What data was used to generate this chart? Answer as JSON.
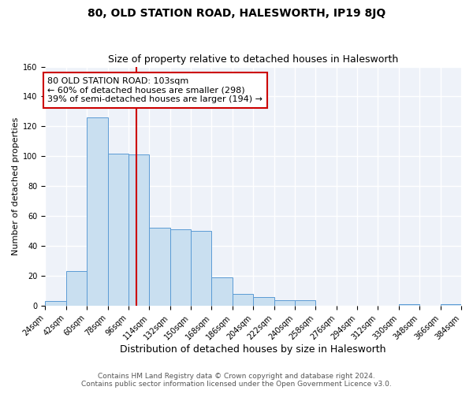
{
  "title": "80, OLD STATION ROAD, HALESWORTH, IP19 8JQ",
  "subtitle": "Size of property relative to detached houses in Halesworth",
  "xlabel": "Distribution of detached houses by size in Halesworth",
  "ylabel": "Number of detached properties",
  "bin_edges": [
    24,
    42,
    60,
    78,
    96,
    114,
    132,
    150,
    168,
    186,
    204,
    222,
    240,
    258,
    276,
    294,
    312,
    330,
    348,
    366,
    384
  ],
  "bar_heights": [
    3,
    23,
    126,
    102,
    101,
    52,
    51,
    50,
    19,
    8,
    6,
    4,
    4,
    0,
    0,
    0,
    0,
    1,
    0,
    1
  ],
  "bar_facecolor": "#c9dff0",
  "bar_edgecolor": "#5b9bd5",
  "vline_x": 103,
  "vline_color": "#cc0000",
  "annotation_line1": "80 OLD STATION ROAD: 103sqm",
  "annotation_line2": "← 60% of detached houses are smaller (298)",
  "annotation_line3": "39% of semi-detached houses are larger (194) →",
  "annotation_box_edgecolor": "#cc0000",
  "annotation_box_facecolor": "white",
  "ylim": [
    0,
    160
  ],
  "yticks": [
    0,
    20,
    40,
    60,
    80,
    100,
    120,
    140,
    160
  ],
  "background_color": "#eef2f9",
  "grid_color": "white",
  "footer_line1": "Contains HM Land Registry data © Crown copyright and database right 2024.",
  "footer_line2": "Contains public sector information licensed under the Open Government Licence v3.0.",
  "title_fontsize": 10,
  "subtitle_fontsize": 9,
  "xlabel_fontsize": 9,
  "ylabel_fontsize": 8,
  "tick_fontsize": 7,
  "annotation_fontsize": 8,
  "footer_fontsize": 6.5
}
